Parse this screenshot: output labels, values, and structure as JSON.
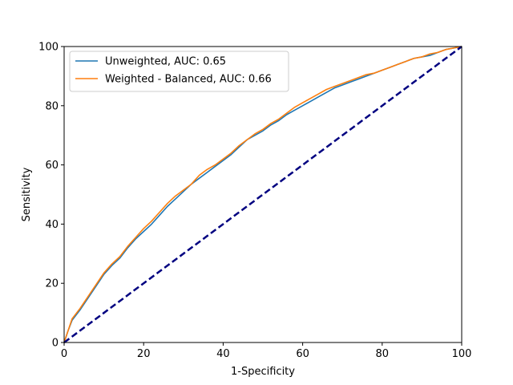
{
  "chart_data": {
    "type": "line",
    "xlabel": "1-Specificity",
    "ylabel": "Sensitivity",
    "xlim": [
      0,
      100
    ],
    "ylim": [
      0,
      100
    ],
    "xticks": [
      0,
      20,
      40,
      60,
      80,
      100
    ],
    "yticks": [
      0,
      20,
      40,
      60,
      80,
      100
    ],
    "xtick_labels": [
      "0",
      "20",
      "40",
      "60",
      "80",
      "100"
    ],
    "ytick_labels": [
      "0",
      "20",
      "40",
      "60",
      "80",
      "100"
    ],
    "grid": false,
    "legend_position": "top-left",
    "series": [
      {
        "name": "Unweighted, AUC: 0.65",
        "color": "#1f77b4",
        "x": [
          0,
          1,
          2,
          4,
          6,
          8,
          10,
          12,
          14,
          16,
          18,
          20,
          22,
          24,
          26,
          28,
          30,
          32,
          34,
          36,
          38,
          40,
          42,
          44,
          46,
          48,
          50,
          52,
          54,
          56,
          58,
          60,
          62,
          64,
          66,
          68,
          70,
          72,
          74,
          76,
          78,
          80,
          82,
          84,
          86,
          88,
          90,
          92,
          94,
          96,
          98,
          100
        ],
        "y": [
          0,
          4,
          7.5,
          11,
          15,
          19,
          23,
          26,
          28.5,
          32,
          35,
          37.5,
          40,
          43,
          46,
          48.5,
          51,
          53.5,
          55.5,
          57.5,
          59.5,
          61.5,
          63.5,
          66,
          68.5,
          70,
          71.5,
          73.5,
          75,
          77,
          78.5,
          80,
          81.5,
          83,
          84.5,
          86,
          87,
          88,
          89,
          90,
          91,
          92,
          93,
          94,
          95,
          96,
          96.5,
          97,
          98,
          99,
          99.5,
          100
        ]
      },
      {
        "name": "Weighted - Balanced, AUC: 0.66",
        "color": "#ff7f0e",
        "x": [
          0,
          1,
          2,
          4,
          6,
          8,
          10,
          12,
          14,
          16,
          18,
          20,
          22,
          24,
          26,
          28,
          30,
          32,
          34,
          36,
          38,
          40,
          42,
          44,
          46,
          48,
          50,
          52,
          54,
          56,
          58,
          60,
          62,
          64,
          66,
          68,
          70,
          72,
          74,
          76,
          78,
          80,
          82,
          84,
          86,
          88,
          90,
          92,
          94,
          96,
          98,
          100
        ],
        "y": [
          0,
          4,
          8,
          11.5,
          15.5,
          19.5,
          23.5,
          26.5,
          29,
          32.5,
          35.5,
          38.5,
          41,
          44,
          47,
          49.5,
          51.5,
          53.5,
          56.5,
          58.5,
          60,
          62,
          64,
          66.5,
          68.5,
          70.5,
          72,
          74,
          75.5,
          77.5,
          79.5,
          81,
          82.5,
          84,
          85.5,
          86.5,
          87.5,
          88.5,
          89.5,
          90.5,
          91,
          92,
          93,
          94,
          95,
          96,
          96.5,
          97.5,
          98,
          99,
          99.5,
          100
        ]
      },
      {
        "name": "",
        "color": "#000080",
        "dashed": true,
        "x": [
          0,
          100
        ],
        "y": [
          0,
          100
        ]
      }
    ]
  }
}
